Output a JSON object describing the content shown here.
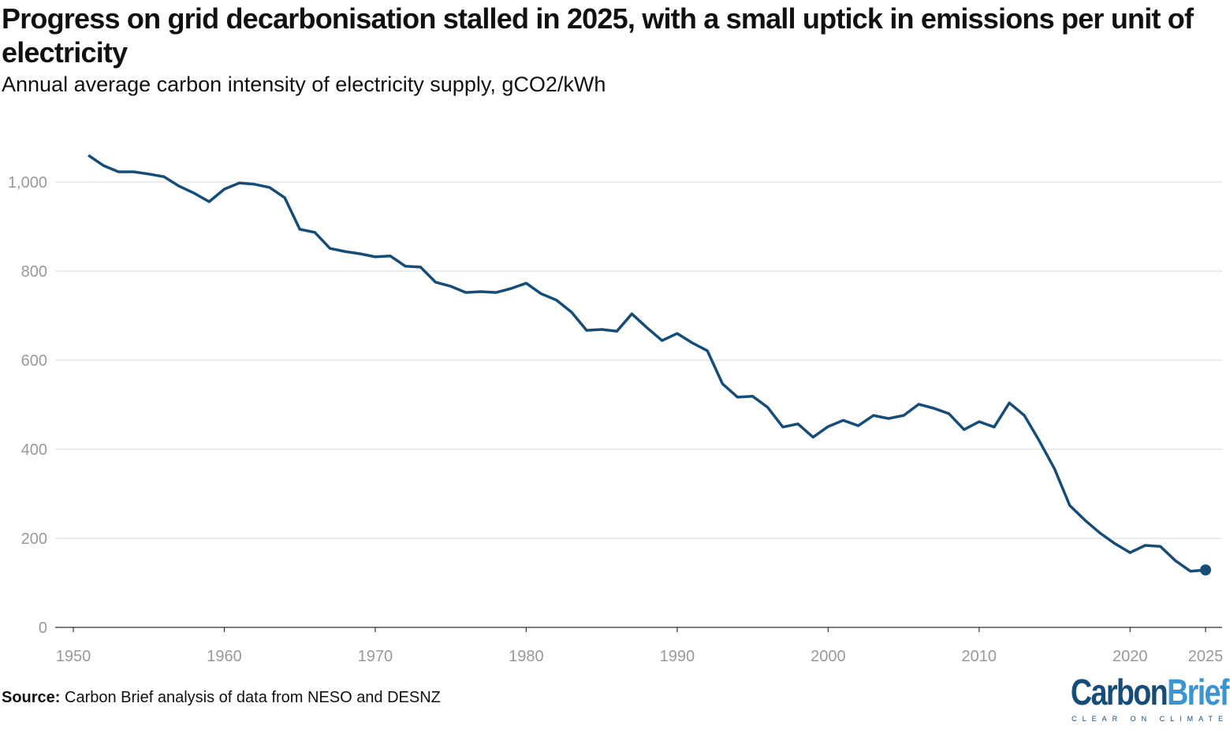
{
  "title": "Progress on grid decarbonisation stalled in 2025, with a small uptick in emissions per unit of electricity",
  "subtitle": "Annual average carbon intensity of electricity supply, gCO2/kWh",
  "source_label": "Source:",
  "source_text": "Carbon Brief analysis of data from NESO and DESNZ",
  "logo": {
    "part1": "Carbon",
    "part2": "Brief",
    "tagline": "CLEAR ON CLIMATE"
  },
  "colors": {
    "line": "#154d78",
    "grid": "#e6e6e6",
    "tick_text": "#999999"
  },
  "chart_data": {
    "type": "line",
    "title": "Progress on grid decarbonisation stalled in 2025, with a small uptick in emissions per unit of electricity",
    "subtitle": "Annual average carbon intensity of electricity supply, gCO2/kWh",
    "xlabel": "",
    "ylabel": "",
    "xlim": [
      1950,
      2025
    ],
    "ylim": [
      0,
      1060
    ],
    "grid": true,
    "legend": "none",
    "x_ticks": [
      "1950",
      "1960",
      "1970",
      "1980",
      "1990",
      "2000",
      "2010",
      "2020",
      "2025"
    ],
    "y_ticks": [
      "0",
      "200",
      "400",
      "600",
      "800",
      "1,000"
    ],
    "end_marker": "2025",
    "x": [
      1951,
      1952,
      1953,
      1954,
      1955,
      1956,
      1957,
      1958,
      1959,
      1960,
      1961,
      1962,
      1963,
      1964,
      1965,
      1966,
      1967,
      1968,
      1969,
      1970,
      1971,
      1972,
      1973,
      1974,
      1975,
      1976,
      1977,
      1978,
      1979,
      1980,
      1981,
      1982,
      1983,
      1984,
      1985,
      1986,
      1987,
      1988,
      1989,
      1990,
      1991,
      1992,
      1993,
      1994,
      1995,
      1996,
      1997,
      1998,
      1999,
      2000,
      2001,
      2002,
      2003,
      2004,
      2005,
      2006,
      2007,
      2008,
      2009,
      2010,
      2011,
      2012,
      2013,
      2014,
      2015,
      2016,
      2017,
      2018,
      2019,
      2020,
      2021,
      2022,
      2023,
      2024,
      2025
    ],
    "values": [
      1060,
      1037,
      1023,
      1023,
      1018,
      1012,
      991,
      975,
      956,
      984,
      998,
      995,
      988,
      965,
      894,
      887,
      851,
      844,
      839,
      832,
      834,
      811,
      809,
      775,
      766,
      752,
      754,
      752,
      761,
      773,
      749,
      735,
      708,
      667,
      669,
      665,
      704,
      673,
      644,
      660,
      639,
      621,
      547,
      517,
      519,
      494,
      450,
      457,
      427,
      451,
      465,
      453,
      476,
      469,
      476,
      501,
      492,
      480,
      444,
      462,
      450,
      504,
      476,
      418,
      356,
      274,
      241,
      212,
      188,
      168,
      184,
      182,
      150,
      126,
      129
    ]
  }
}
